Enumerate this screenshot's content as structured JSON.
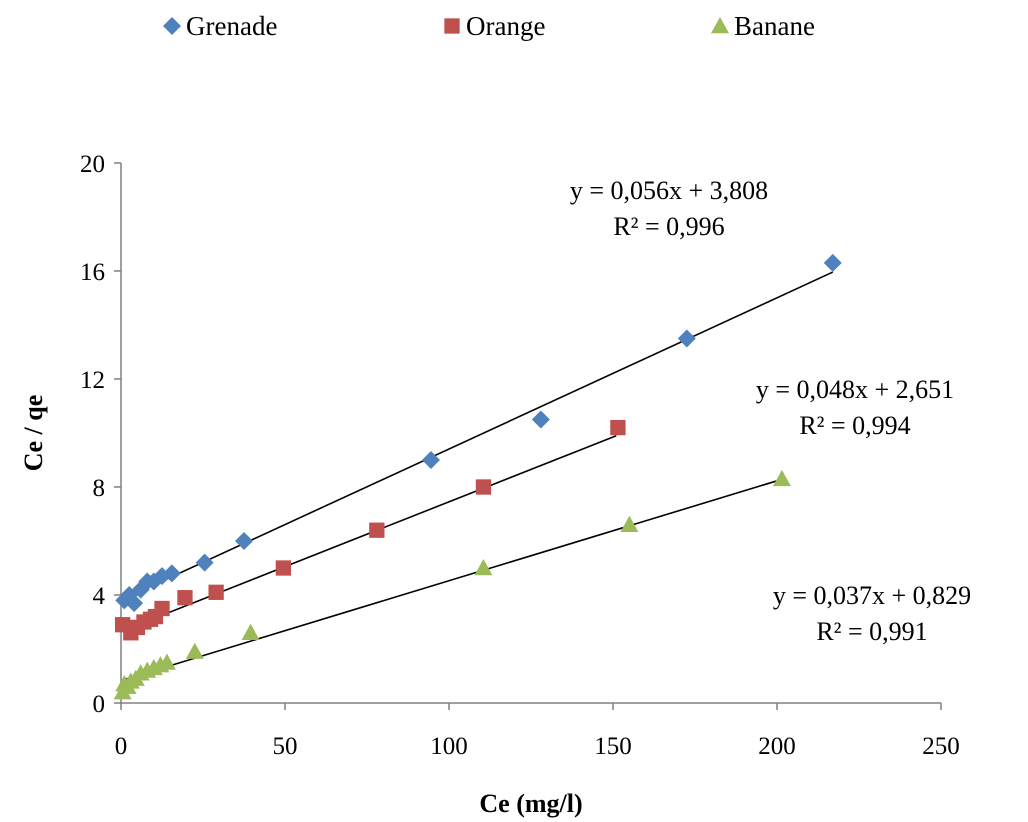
{
  "chart_data": {
    "type": "scatter",
    "title": "",
    "xlabel": "Ce (mg/l)",
    "ylabel": "Ce / qe",
    "xlim": [
      0,
      250
    ],
    "ylim": [
      0,
      20
    ],
    "xticks": [
      0,
      50,
      100,
      150,
      200,
      250
    ],
    "yticks": [
      0,
      4,
      8,
      12,
      16,
      20
    ],
    "grid": false,
    "legend_position": "top",
    "series": [
      {
        "name": "Grenade",
        "color": "#4F81BD",
        "marker": "diamond",
        "points": [
          [
            1.0,
            3.8
          ],
          [
            2.5,
            4.0
          ],
          [
            4.0,
            3.7
          ],
          [
            6.0,
            4.2
          ],
          [
            8.0,
            4.5
          ],
          [
            10.0,
            4.5
          ],
          [
            12.5,
            4.7
          ],
          [
            15.5,
            4.8
          ],
          [
            25.5,
            5.2
          ],
          [
            37.5,
            6.0
          ],
          [
            94.5,
            9.0
          ],
          [
            128.0,
            10.5
          ],
          [
            172.5,
            13.5
          ],
          [
            217.0,
            16.3
          ]
        ],
        "trendline": {
          "slope": 0.056,
          "intercept": 3.808,
          "x_range": [
            1,
            217
          ],
          "equation": "y = 0,056x + 3,808",
          "r2": "R² = 0,996"
        }
      },
      {
        "name": "Orange",
        "color": "#C0504D",
        "marker": "square",
        "points": [
          [
            0.5,
            2.9
          ],
          [
            3.0,
            2.6
          ],
          [
            5.0,
            2.8
          ],
          [
            7.0,
            3.0
          ],
          [
            9.0,
            3.1
          ],
          [
            10.5,
            3.2
          ],
          [
            12.5,
            3.5
          ],
          [
            19.5,
            3.9
          ],
          [
            29.0,
            4.1
          ],
          [
            49.5,
            5.0
          ],
          [
            78.0,
            6.4
          ],
          [
            110.5,
            8.0
          ],
          [
            151.5,
            10.2
          ]
        ],
        "trendline": {
          "slope": 0.048,
          "intercept": 2.651,
          "x_range": [
            1,
            151
          ],
          "equation": "y = 0,048x + 2,651",
          "r2": "R² = 0,994"
        }
      },
      {
        "name": "Banane",
        "color": "#9BBB59",
        "marker": "triangle",
        "points": [
          [
            0.5,
            0.4
          ],
          [
            1.0,
            0.7
          ],
          [
            2.0,
            0.6
          ],
          [
            3.0,
            0.8
          ],
          [
            4.5,
            0.9
          ],
          [
            6.0,
            1.1
          ],
          [
            8.0,
            1.2
          ],
          [
            10.0,
            1.3
          ],
          [
            12.0,
            1.4
          ],
          [
            14.0,
            1.5
          ],
          [
            22.5,
            1.9
          ],
          [
            39.5,
            2.6
          ],
          [
            110.5,
            5.0
          ],
          [
            155.0,
            6.6
          ],
          [
            201.5,
            8.3
          ]
        ],
        "trendline": {
          "slope": 0.037,
          "intercept": 0.829,
          "x_range": [
            1,
            201
          ],
          "equation": "y = 0,037x + 0,829",
          "r2": "R² = 0,991"
        }
      }
    ]
  }
}
